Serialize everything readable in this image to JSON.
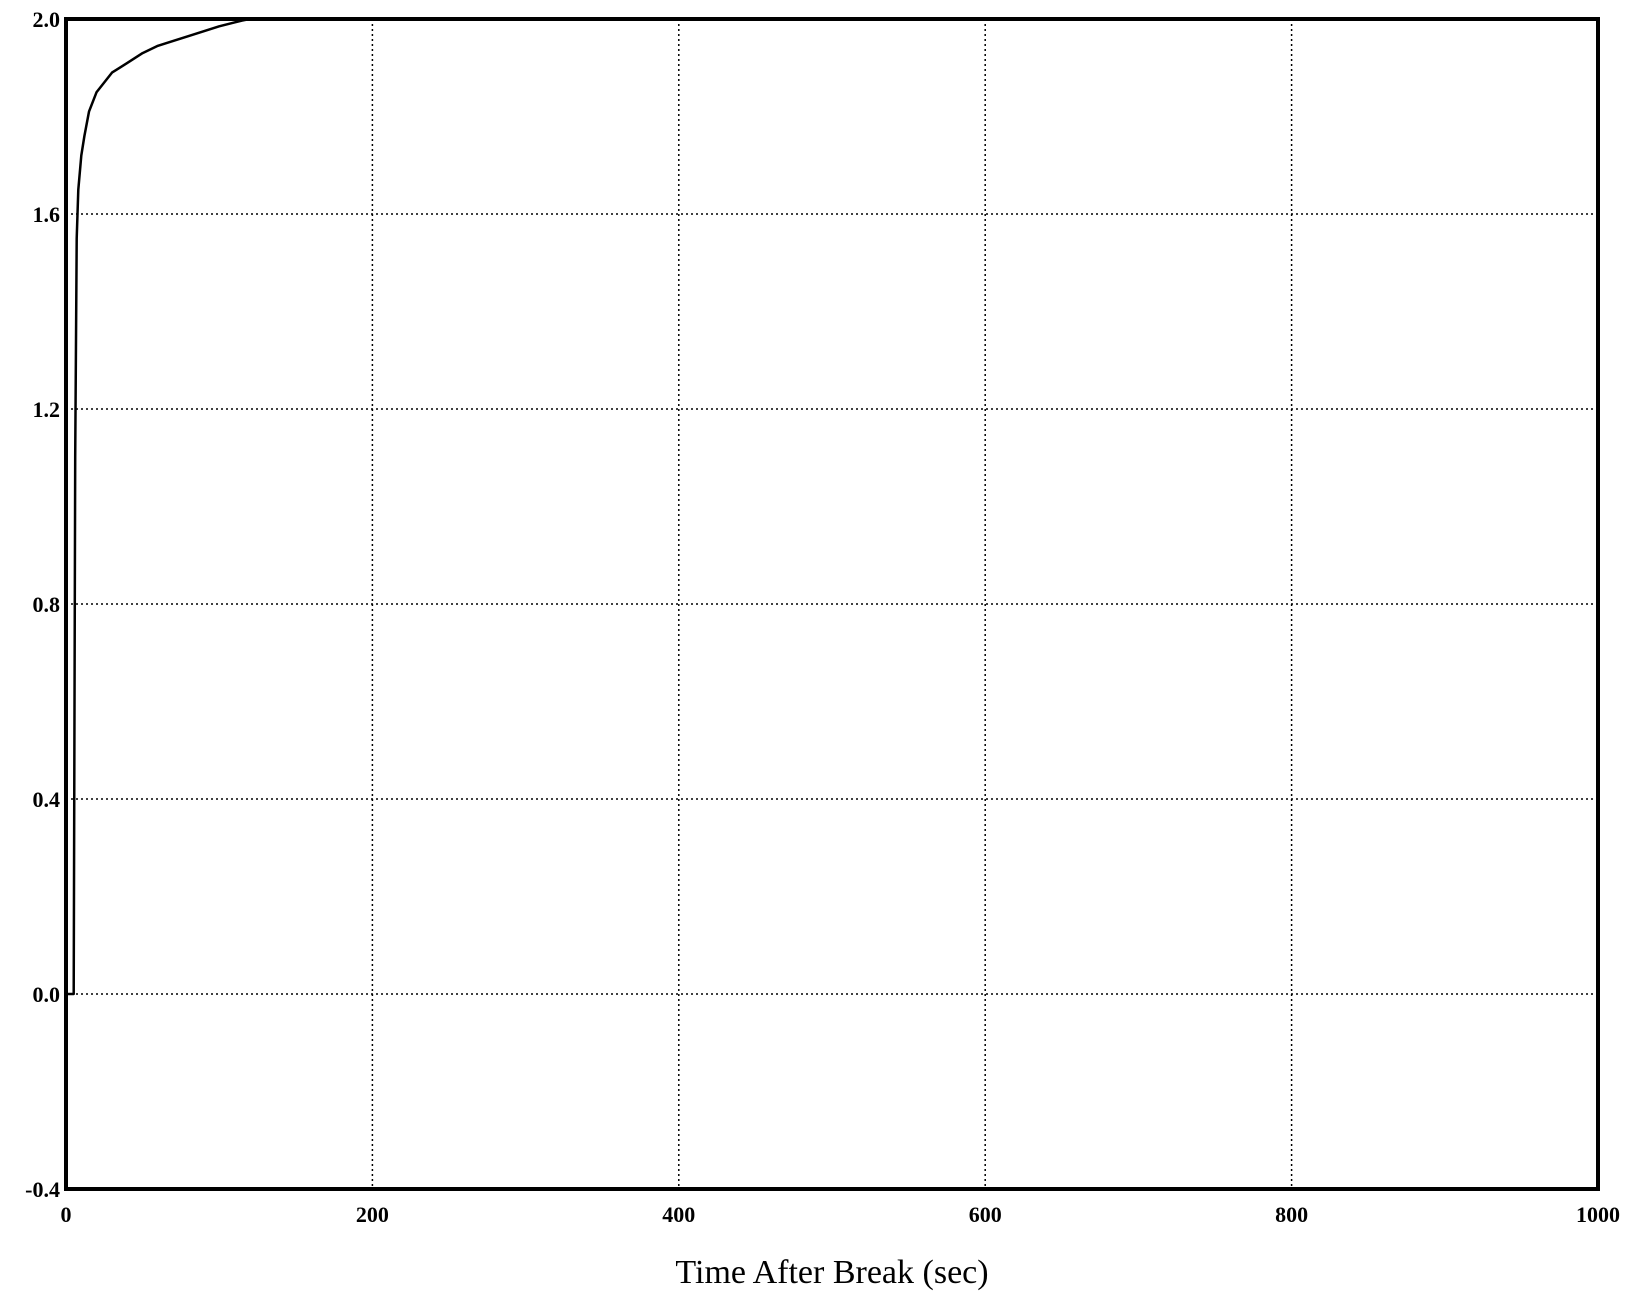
{
  "chart_data": {
    "type": "line",
    "title": "",
    "xlabel": "Time After Break (sec)",
    "ylabel": "",
    "xlim": [
      0,
      1000
    ],
    "ylim": [
      -0.4,
      2.0
    ],
    "x_ticks": [
      0,
      200,
      400,
      600,
      800,
      1000
    ],
    "x_tick_labels": [
      "0",
      "200",
      "400",
      "600",
      "800",
      "1000"
    ],
    "y_ticks": [
      -0.4,
      0.0,
      0.4,
      0.8,
      1.2,
      1.6,
      2.0
    ],
    "y_tick_labels": [
      "-0.4",
      "0.0",
      "0.4",
      "0.8",
      "1.2",
      "1.6",
      "2.0"
    ],
    "grid": true,
    "line_color": "#000000",
    "series": [
      {
        "x": [
          0,
          1,
          2,
          3,
          4,
          5,
          6,
          7,
          8,
          10,
          12,
          15,
          20,
          25,
          30,
          35,
          40,
          50,
          60,
          70,
          80,
          90,
          100,
          110,
          115,
          120,
          150,
          200,
          300,
          400,
          500,
          600,
          700,
          800,
          900,
          1000
        ],
        "values": [
          0.0,
          0.0,
          0.0,
          0.0,
          0.0,
          0.0,
          1.1,
          1.55,
          1.65,
          1.72,
          1.76,
          1.81,
          1.85,
          1.87,
          1.89,
          1.9,
          1.91,
          1.93,
          1.945,
          1.955,
          1.965,
          1.975,
          1.985,
          1.993,
          1.997,
          2.0,
          2.0,
          2.0,
          2.0,
          2.0,
          2.0,
          2.0,
          2.0,
          2.0,
          2.0,
          2.0
        ]
      }
    ]
  }
}
